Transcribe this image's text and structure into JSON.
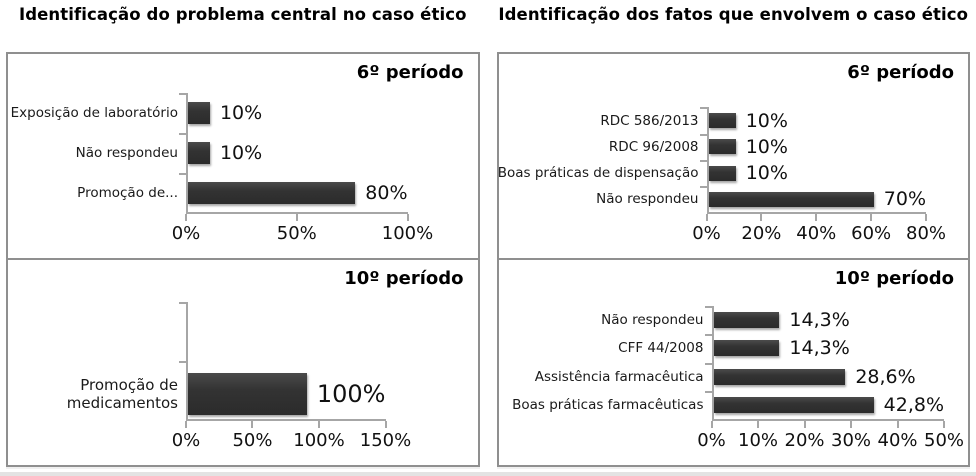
{
  "panels": [
    {
      "title": "Identificação do problema central no caso ético"
    },
    {
      "title": "Identificação dos fatos que envolvem o caso ético"
    }
  ],
  "chart_data": [
    {
      "type": "bar",
      "orientation": "horizontal",
      "panel_title": "Identificação do problema central no caso ético",
      "group_label": "6º período",
      "categories": [
        "Exposição de laboratório",
        "Não respondeu",
        "Promoção de..."
      ],
      "values": [
        10,
        10,
        80
      ],
      "value_labels": [
        "10%",
        "10%",
        "80%"
      ],
      "xlim": [
        0,
        100
      ],
      "tick_labels": [
        "0%",
        "50%",
        "100%"
      ],
      "grid": false,
      "legend": "none"
    },
    {
      "type": "bar",
      "orientation": "horizontal",
      "panel_title": "Identificação do problema central no caso ético",
      "group_label": "10º período",
      "categories": [
        "Promoção de medicamentos"
      ],
      "values": [
        100
      ],
      "value_labels": [
        "100%"
      ],
      "xlim": [
        0,
        150
      ],
      "tick_labels": [
        "0%",
        "50%",
        "100%",
        "150%"
      ],
      "grid": false,
      "legend": "none"
    },
    {
      "type": "bar",
      "orientation": "horizontal",
      "panel_title": "Identificação dos fatos que envolvem o caso ético",
      "group_label": "6º período",
      "categories": [
        "RDC 586/2013",
        "RDC 96/2008",
        "Boas práticas de dispensação",
        "Não respondeu"
      ],
      "values": [
        10,
        10,
        10,
        70
      ],
      "value_labels": [
        "10%",
        "10%",
        "10%",
        "70%"
      ],
      "xlim": [
        0,
        80
      ],
      "tick_labels": [
        "0%",
        "20%",
        "40%",
        "60%",
        "80%"
      ],
      "grid": false,
      "legend": "none"
    },
    {
      "type": "bar",
      "orientation": "horizontal",
      "panel_title": "Identificação dos fatos que envolvem o caso ético",
      "group_label": "10º período",
      "categories": [
        "Não respondeu",
        "CFF 44/2008",
        "Assistência farmacêutica",
        "Boas práticas farmacêuticas"
      ],
      "values": [
        14.3,
        14.3,
        28.6,
        42.8
      ],
      "value_labels": [
        "14,3%",
        "14,3%",
        "28,6%",
        "42,8%"
      ],
      "xlim": [
        0,
        50
      ],
      "tick_labels": [
        "0%",
        "10%",
        "20%",
        "30%",
        "40%",
        "50%"
      ],
      "grid": false,
      "legend": "none"
    }
  ],
  "colors": {
    "bar": "#333333",
    "panel_border": "#8f8f8f",
    "axis": "#a6a6a6",
    "text": "#000000",
    "background": "#ffffff"
  }
}
